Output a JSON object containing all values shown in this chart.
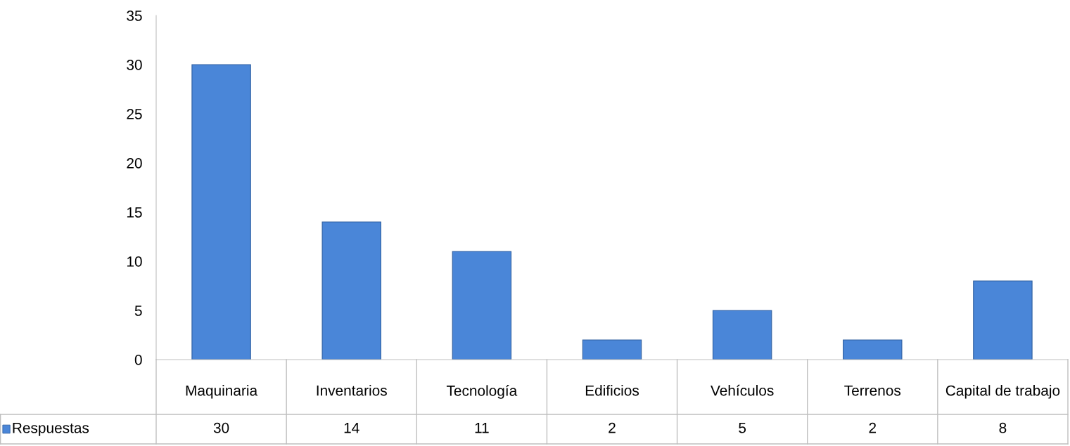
{
  "chart_data": {
    "type": "bar",
    "categories": [
      "Maquinaria",
      "Inventarios",
      "Tecnología",
      "Edificios",
      "Vehículos",
      "Terrenos",
      "Capital de trabajo"
    ],
    "series": [
      {
        "name": "Respuestas",
        "color": "#4a86d8",
        "values": [
          30,
          14,
          11,
          2,
          5,
          2,
          8
        ]
      }
    ],
    "ylim": [
      0,
      35
    ],
    "yticks": [
      0,
      5,
      10,
      15,
      20,
      25,
      30,
      35
    ],
    "data_labels": true,
    "grid": false,
    "legend": "bottom left"
  }
}
